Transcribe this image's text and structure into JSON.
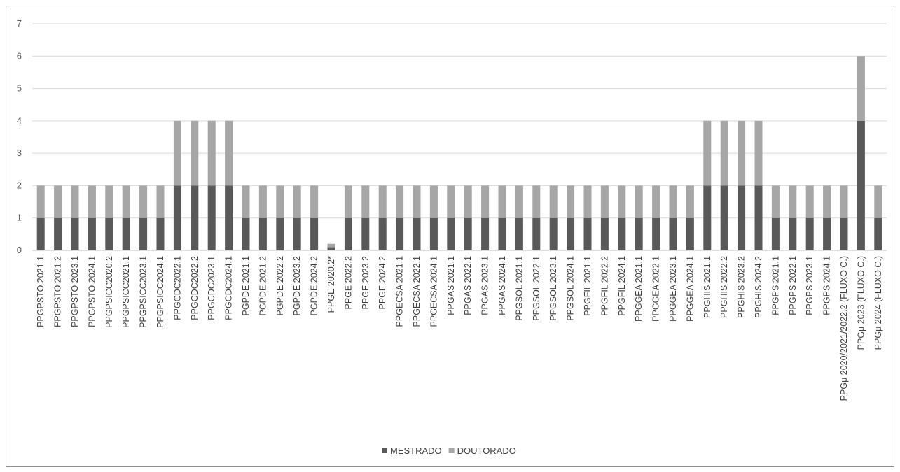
{
  "chart_data": {
    "type": "bar",
    "stacked": true,
    "ylim": [
      0,
      7
    ],
    "yticks": [
      0,
      1,
      2,
      3,
      4,
      5,
      6,
      7
    ],
    "grid": true,
    "legend_position": "bottom",
    "categories": [
      "PPGPSTO 2021.1",
      "PPGPSTO 2021.2",
      "PPGPSTO 2023.1",
      "PPGPSTO 2024.1",
      "PPGPSICC2020.2",
      "PPGPSICC2021.1",
      "PPGPSICC2023.1",
      "PPGPSICC2024.1",
      "PPGCDC2022.1",
      "PPGCDC2022.2",
      "PPGCDC2023.1",
      "PPGCDC2024.1",
      "PGPDE 2021.1",
      "PGPDE 2021.2",
      "PGPDE 2022.2",
      "PGPDE 2023.2",
      "PGPDE 2024.2",
      "PPGE 2020.2*",
      "PPGE 2022.2",
      "PPGE 2023.2",
      "PPGE 2024.2",
      "PPGECSA 2021.1",
      "PPGECSA 2022.1",
      "PPGECSA 2024.1",
      "PPGAS 2021.1",
      "PPGAS 2022.1",
      "PPGAS 2023.1",
      "PPGAS 2024.1",
      "PPGSOL 2021.1",
      "PPGSOL 2022.1",
      "PPGSOL 2023.1",
      "PPGSOL 2024.1",
      "PPGFIL 2021.1",
      "PPGFIL 2022.2",
      "PPGFIL 2024.1",
      "PPGGEA 2021.1",
      "PPGGEA 2022.1",
      "PPGGEA 2023.1",
      "PPGGEA 2024.1",
      "PPGHIS 2021.1",
      "PPGHIS 2022.2",
      "PPGHIS 2023.2",
      "PPGHIS 2024.2",
      "PPGPS 2021.1",
      "PPGPS 2022.1",
      "PPGPS 2023.1",
      "PPGPS 2024.1",
      "PPGμ 2020/2021/2022.2 (FLUXO C.)",
      "PPGμ 2023 (FLUXO C.)",
      "PPGμ 2024 (FLUXO C.)"
    ],
    "series": [
      {
        "name": "MESTRADO",
        "color": "#595959",
        "values": [
          1,
          1,
          1,
          1,
          1,
          1,
          1,
          1,
          2,
          2,
          2,
          2,
          1,
          1,
          1,
          1,
          1,
          0.1,
          1,
          1,
          1,
          1,
          1,
          1,
          1,
          1,
          1,
          1,
          1,
          1,
          1,
          1,
          1,
          1,
          1,
          1,
          1,
          1,
          1,
          2,
          2,
          2,
          2,
          1,
          1,
          1,
          1,
          1,
          4,
          1
        ]
      },
      {
        "name": "DOUTORADO",
        "color": "#a6a6a6",
        "values": [
          1,
          1,
          1,
          1,
          1,
          1,
          1,
          1,
          2,
          2,
          2,
          2,
          1,
          1,
          1,
          1,
          1,
          0.1,
          1,
          1,
          1,
          1,
          1,
          1,
          1,
          1,
          1,
          1,
          1,
          1,
          1,
          1,
          1,
          1,
          1,
          1,
          1,
          1,
          1,
          2,
          2,
          2,
          2,
          1,
          1,
          1,
          1,
          1,
          2,
          1
        ]
      }
    ]
  }
}
